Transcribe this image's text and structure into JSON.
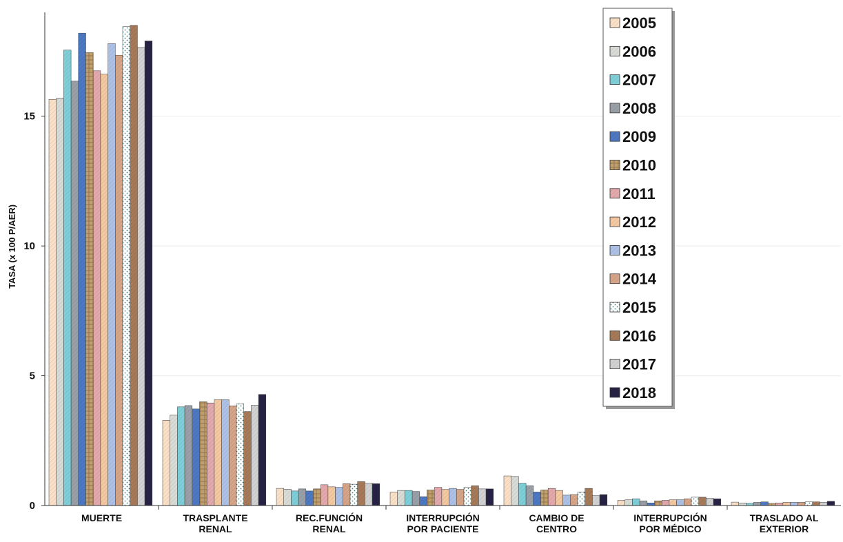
{
  "chart_data": {
    "type": "bar",
    "title": "",
    "xlabel": "",
    "ylabel": "TASA (x 100 P/AER)",
    "ylim": [
      0,
      19
    ],
    "yticks": [
      0,
      5,
      10,
      15
    ],
    "grid": true,
    "legend_position": "top-right",
    "categories": [
      [
        "MUERTE"
      ],
      [
        "TRASPLANTE",
        "RENAL"
      ],
      [
        "REC.FUNCIÓN",
        "RENAL"
      ],
      [
        "INTERRUPCIÓN",
        "POR PACIENTE"
      ],
      [
        "CAMBIO DE",
        "CENTRO"
      ],
      [
        "INTERRUPCIÓN",
        "POR MÉDICO"
      ],
      [
        "TRASLADO AL",
        "EXTERIOR"
      ]
    ],
    "series": [
      {
        "name": "2005",
        "color": "#fbe0c8",
        "values": [
          15.65,
          3.28,
          0.66,
          0.52,
          1.14,
          0.2,
          0.13
        ]
      },
      {
        "name": "2006",
        "color": "#d9dcd6",
        "values": [
          15.7,
          3.48,
          0.63,
          0.58,
          1.12,
          0.22,
          0.1
        ]
      },
      {
        "name": "2007",
        "color": "#7fcfd8",
        "values": [
          17.55,
          3.8,
          0.56,
          0.58,
          0.86,
          0.26,
          0.08
        ]
      },
      {
        "name": "2008",
        "color": "#9aa0a8",
        "values": [
          16.35,
          3.85,
          0.64,
          0.54,
          0.76,
          0.18,
          0.12
        ]
      },
      {
        "name": "2009",
        "color": "#4d78c2",
        "values": [
          18.2,
          3.72,
          0.56,
          0.34,
          0.52,
          0.1,
          0.14
        ]
      },
      {
        "name": "2010",
        "color": "#c1a070",
        "values": [
          17.45,
          4.0,
          0.64,
          0.6,
          0.6,
          0.18,
          0.08
        ]
      },
      {
        "name": "2011",
        "color": "#e3a9ac",
        "values": [
          16.75,
          3.95,
          0.8,
          0.7,
          0.66,
          0.2,
          0.1
        ]
      },
      {
        "name": "2012",
        "color": "#f4c8a0",
        "values": [
          16.62,
          4.08,
          0.72,
          0.62,
          0.58,
          0.22,
          0.12
        ]
      },
      {
        "name": "2013",
        "color": "#adc1e6",
        "values": [
          17.8,
          4.08,
          0.7,
          0.66,
          0.4,
          0.22,
          0.12
        ]
      },
      {
        "name": "2014",
        "color": "#d6a588",
        "values": [
          17.35,
          3.84,
          0.84,
          0.62,
          0.42,
          0.26,
          0.12
        ]
      },
      {
        "name": "2015",
        "color": "#ffffff",
        "values": [
          18.45,
          3.92,
          0.82,
          0.7,
          0.52,
          0.32,
          0.14
        ]
      },
      {
        "name": "2016",
        "color": "#a67a58",
        "values": [
          18.5,
          3.62,
          0.92,
          0.76,
          0.66,
          0.32,
          0.14
        ]
      },
      {
        "name": "2017",
        "color": "#d2d2d2",
        "values": [
          17.65,
          3.86,
          0.86,
          0.64,
          0.38,
          0.28,
          0.12
        ]
      },
      {
        "name": "2018",
        "color": "#252244",
        "values": [
          17.9,
          4.28,
          0.84,
          0.64,
          0.42,
          0.26,
          0.16
        ]
      }
    ]
  }
}
